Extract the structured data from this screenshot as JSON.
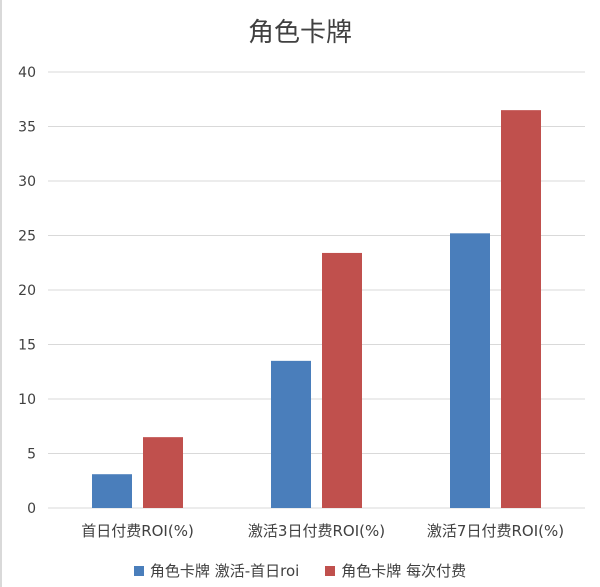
{
  "chart_data": {
    "type": "bar",
    "title": "角色卡牌",
    "categories": [
      "首日付费ROI(%)",
      "激活3日付费ROI(%)",
      "激活7日付费ROI(%)"
    ],
    "series": [
      {
        "name": "角色卡牌 激活-首日roi",
        "color": "#4a7ebb",
        "values": [
          3.1,
          13.5,
          25.2
        ]
      },
      {
        "name": "角色卡牌 每次付费",
        "color": "#c0504d",
        "values": [
          6.5,
          23.4,
          36.5
        ]
      }
    ],
    "ylim": [
      0,
      40
    ],
    "yticks": [
      0,
      5,
      10,
      15,
      20,
      25,
      30,
      35,
      40
    ],
    "grid": true,
    "legend_position": "bottom"
  }
}
